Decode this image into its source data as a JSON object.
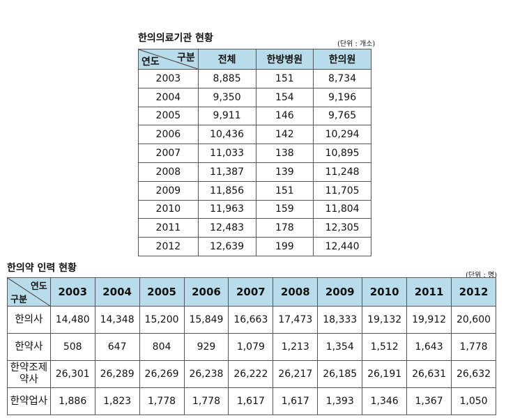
{
  "table1": {
    "title": "한의의료기관 현황",
    "unit": "(단위 : 개소)",
    "corner_top": "구분",
    "corner_bottom": "연도",
    "headers": [
      "전체",
      "한방병원",
      "한의원"
    ],
    "rows": [
      {
        "year": "2003",
        "values": [
          "8,885",
          "151",
          "8,734"
        ]
      },
      {
        "year": "2004",
        "values": [
          "9,350",
          "154",
          "9,196"
        ]
      },
      {
        "year": "2005",
        "values": [
          "9,911",
          "146",
          "9,765"
        ]
      },
      {
        "year": "2006",
        "values": [
          "10,436",
          "142",
          "10,294"
        ]
      },
      {
        "year": "2007",
        "values": [
          "11,033",
          "138",
          "10,895"
        ]
      },
      {
        "year": "2008",
        "values": [
          "11,387",
          "139",
          "11,248"
        ]
      },
      {
        "year": "2009",
        "values": [
          "11,856",
          "151",
          "11,705"
        ]
      },
      {
        "year": "2010",
        "values": [
          "11,963",
          "159",
          "11,804"
        ]
      },
      {
        "year": "2011",
        "values": [
          "12,483",
          "178",
          "12,305"
        ]
      },
      {
        "year": "2012",
        "values": [
          "12,639",
          "199",
          "12,440"
        ]
      }
    ]
  },
  "table2": {
    "title": "한의약 인력 현황",
    "unit": "(단위 : 명)",
    "corner_top": "연도",
    "corner_bottom": "구분",
    "years": [
      "2003",
      "2004",
      "2005",
      "2006",
      "2007",
      "2008",
      "2009",
      "2010",
      "2011",
      "2012"
    ],
    "rows": [
      {
        "label": "한의사",
        "values": [
          "14,480",
          "14,348",
          "15,200",
          "15,849",
          "16,663",
          "17,473",
          "18,333",
          "19,132",
          "19,912",
          "20,600"
        ]
      },
      {
        "label": "한약사",
        "values": [
          "508",
          "647",
          "804",
          "929",
          "1,079",
          "1,213",
          "1,354",
          "1,512",
          "1,643",
          "1,778"
        ]
      },
      {
        "label": "한약조제\n약사",
        "values": [
          "26,301",
          "26,289",
          "26,269",
          "26,238",
          "26,222",
          "26,217",
          "26,185",
          "26,191",
          "26,631",
          "26,632"
        ]
      },
      {
        "label": "한약업사",
        "values": [
          "1,886",
          "1,823",
          "1,778",
          "1,778",
          "1,617",
          "1,617",
          "1,393",
          "1,346",
          "1,367",
          "1,050"
        ]
      }
    ]
  }
}
